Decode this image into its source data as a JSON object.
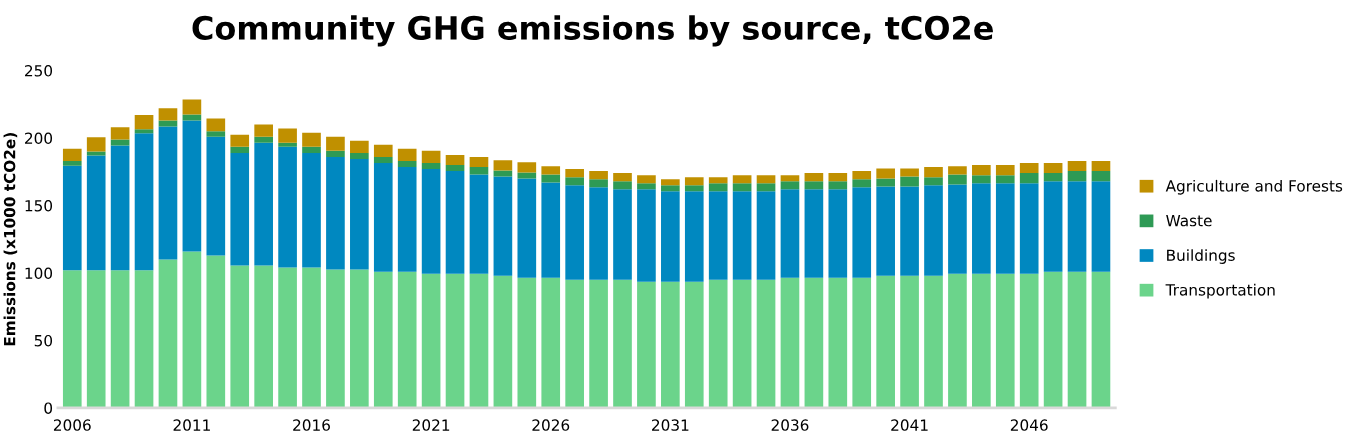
{
  "chart_data": {
    "type": "bar",
    "title": "Community GHG emissions by source, tCO2e",
    "ylabel": "Emissions (x1000 tCO2e)",
    "stacked": true,
    "legend": "right",
    "grid": false,
    "categories": [
      "2006",
      null,
      null,
      null,
      null,
      "2011",
      null,
      null,
      null,
      null,
      "2016",
      null,
      null,
      null,
      null,
      "2021",
      null,
      null,
      null,
      null,
      "2026",
      null,
      null,
      null,
      null,
      "2031",
      null,
      null,
      null,
      null,
      "2036",
      null,
      null,
      null,
      null,
      "2041",
      null,
      null,
      null,
      null,
      "2046",
      null,
      null,
      null
    ],
    "ylim": [
      0,
      250
    ],
    "yticks": [
      0,
      50,
      100,
      150,
      200,
      250
    ],
    "series": [
      {
        "name": "Transportation",
        "color": "#6bd48b",
        "values": [
          102,
          102,
          102,
          102,
          110,
          116,
          113,
          105.5,
          105.5,
          104,
          104,
          102.5,
          102.5,
          101,
          101,
          99.5,
          99.5,
          99.5,
          98,
          96.5,
          96.5,
          95,
          95,
          95,
          93.5,
          93.5,
          93.5,
          95,
          95,
          95,
          96.5,
          96.5,
          96.5,
          96.5,
          98,
          98,
          98,
          99.5,
          99.5,
          99.5,
          99.5,
          101,
          101,
          101
        ]
      },
      {
        "name": "Buildings",
        "color": "#0088c0",
        "values": [
          77.5,
          85,
          92.5,
          101.5,
          98.5,
          97,
          88,
          83.5,
          91,
          89.5,
          85,
          83.5,
          82,
          80.5,
          77.5,
          77.5,
          76,
          73.5,
          73.5,
          73.5,
          70.5,
          70,
          68.5,
          67,
          68.5,
          67,
          67,
          65.5,
          65.5,
          65.5,
          65.5,
          65.5,
          65.5,
          67,
          66,
          66,
          67,
          66,
          67,
          67,
          67,
          67,
          67,
          67
        ]
      },
      {
        "name": "Waste",
        "color": "#2e9a55",
        "values": [
          3.5,
          3,
          4.5,
          3,
          4.5,
          4.5,
          4,
          4.5,
          4.5,
          3,
          4.5,
          4.5,
          4.5,
          4.5,
          4.5,
          4.5,
          4.5,
          5.5,
          4.5,
          4.5,
          6,
          6,
          6,
          6,
          4.5,
          4.5,
          4.5,
          6,
          6,
          6,
          6,
          6,
          6,
          6,
          6,
          7.5,
          6,
          7.5,
          6,
          6,
          7.5,
          6,
          7.5,
          7.5
        ]
      },
      {
        "name": "Agriculture and Forests",
        "color": "#c09000",
        "values": [
          9,
          10.5,
          9,
          10.5,
          9,
          11,
          9.5,
          9,
          9,
          10.5,
          10.5,
          10.5,
          9,
          9,
          9,
          9,
          7.5,
          7.5,
          7.5,
          7.5,
          6,
          6,
          6,
          6,
          6,
          4.5,
          6,
          4.5,
          6,
          6,
          4.5,
          6,
          6,
          6,
          7.5,
          6,
          7.5,
          6,
          7.5,
          7.5,
          7.5,
          7.5,
          7.5,
          7.5
        ]
      }
    ]
  }
}
